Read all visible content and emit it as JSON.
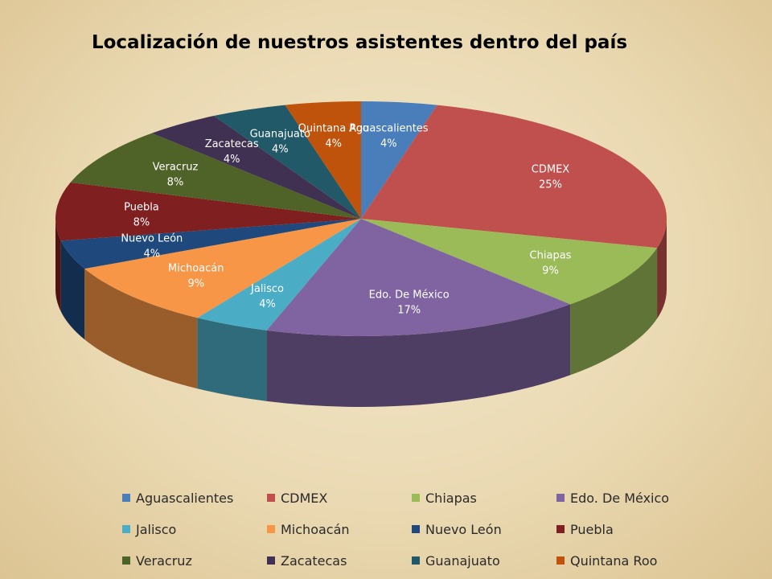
{
  "chart_data": {
    "type": "pie",
    "title": "Localización de nuestros asistentes dentro del país",
    "categories": [
      "Aguascalientes",
      "CDMEX",
      "Chiapas",
      "Edo. De México",
      "Jalisco",
      "Michoacán",
      "Nuevo León",
      "Puebla",
      "Veracruz",
      "Zacatecas",
      "Guanajuato",
      "Quintana Roo"
    ],
    "values": [
      4,
      25,
      9,
      17,
      4,
      9,
      4,
      8,
      8,
      4,
      4,
      4
    ],
    "value_labels": [
      "4%",
      "25%",
      "9%",
      "17%",
      "4%",
      "9%",
      "4%",
      "8%",
      "8%",
      "4%",
      "4%",
      "4%"
    ],
    "colors": [
      "#4a7ebb",
      "#c0504d",
      "#9bbb59",
      "#8064a2",
      "#4bacc6",
      "#f79646",
      "#1f497d",
      "#7f1f1f",
      "#4f6228",
      "#403152",
      "#215968",
      "#c0530b"
    ],
    "legend_position": "bottom",
    "style": "3d"
  }
}
